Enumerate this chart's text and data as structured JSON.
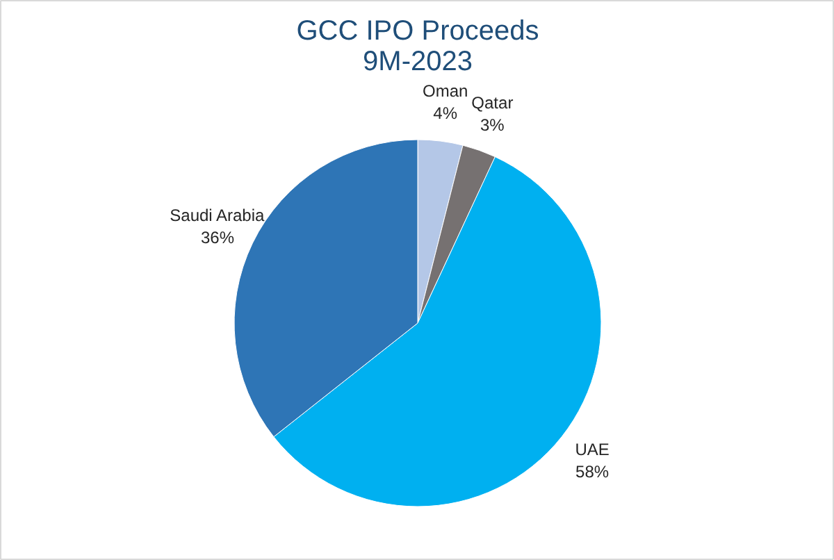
{
  "chart_data": {
    "type": "pie",
    "title": "GCC IPO Proceeds\n9M-2023",
    "categories": [
      "Oman",
      "Qatar",
      "UAE",
      "Saudi Arabia"
    ],
    "values": [
      4,
      3,
      58,
      36
    ],
    "colors": [
      "#b4c7e7",
      "#767171",
      "#00b0f0",
      "#2e75b6"
    ],
    "value_labels": [
      "4%",
      "3%",
      "58%",
      "36%"
    ]
  }
}
